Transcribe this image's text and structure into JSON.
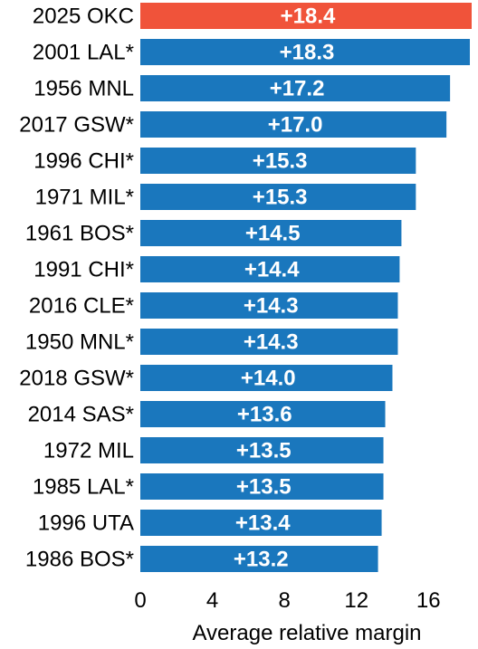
{
  "chart_data": {
    "type": "bar",
    "orientation": "horizontal",
    "categories": [
      "2025 OKC",
      "2001 LAL*",
      "1956 MNL",
      "2017 GSW*",
      "1996 CHI*",
      "1971 MIL*",
      "1961 BOS*",
      "1991 CHI*",
      "2016 CLE*",
      "1950 MNL*",
      "2018 GSW*",
      "2014 SAS*",
      "1972 MIL",
      "1985 LAL*",
      "1996 UTA",
      "1986 BOS*"
    ],
    "values": [
      18.4,
      18.3,
      17.2,
      17.0,
      15.3,
      15.3,
      14.5,
      14.4,
      14.3,
      14.3,
      14.0,
      13.6,
      13.5,
      13.5,
      13.4,
      13.2
    ],
    "value_labels": [
      "+18.4",
      "+18.3",
      "+17.2",
      "+17.0",
      "+15.3",
      "+15.3",
      "+14.5",
      "+14.4",
      "+14.3",
      "+14.3",
      "+14.0",
      "+13.6",
      "+13.5",
      "+13.5",
      "+13.4",
      "+13.2"
    ],
    "highlight_index": 0,
    "colors": {
      "highlight": "#f0533a",
      "default": "#1a77bd"
    },
    "xticks": [
      "0",
      "4",
      "8",
      "12",
      "16"
    ],
    "xtick_values": [
      0,
      4,
      8,
      12,
      16
    ],
    "xlim": [
      0,
      18.4
    ],
    "xlabel": "Average relative margin",
    "title": "",
    "grid": false
  }
}
